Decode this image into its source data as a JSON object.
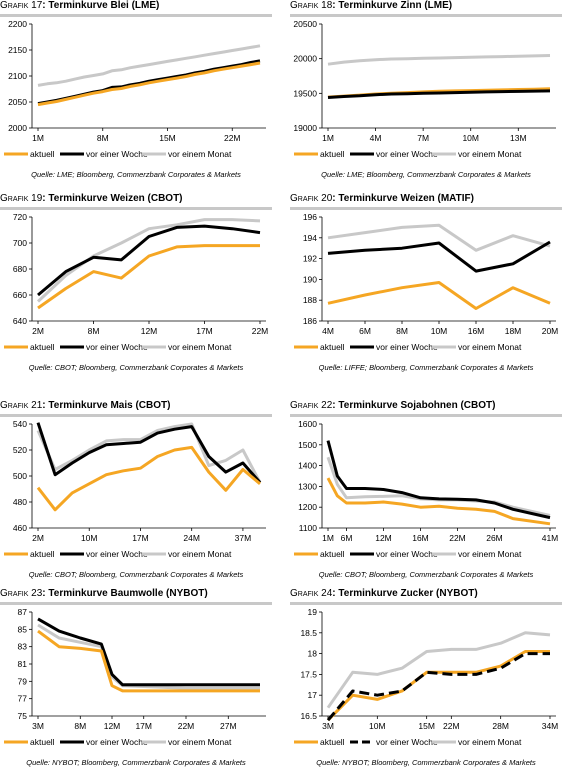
{
  "colors": {
    "aktuell": "#f5a623",
    "woche": "#000000",
    "monat": "#c8c8c8"
  },
  "legend": [
    "aktuell",
    "vor einer Woche",
    "vor einem Monat"
  ],
  "charts": [
    {
      "title_prefix": "Grafik 17",
      "title_text": ": Terminkurve Blei (LME)",
      "source": "Quelle: LME; Bloomberg, Commerzbank Corporates & Markets"
    },
    {
      "title_prefix": "Grafik 18",
      "title_text": ": Terminkurve Zinn (LME)",
      "source": "Quelle: LME; Bloomberg, Commerzbank Corporates & Markets"
    },
    {
      "title_prefix": "Grafik 19",
      "title_text": ": Terminkurve Weizen (CBOT)",
      "source": "Quelle: CBOT; Bloomberg, Commerzbank Corporates & Markets"
    },
    {
      "title_prefix": "Grafik 20",
      "title_text": ": Terminkurve Weizen (MATIF)",
      "source": "Quelle: LIFFE; Bloomberg, Commerzbank Corporates & Markets"
    },
    {
      "title_prefix": "Grafik 21",
      "title_text": ": Terminkurve Mais (CBOT)",
      "source": "Quelle: CBOT; Bloomberg, Commerzbank Corporates & Markets"
    },
    {
      "title_prefix": "Grafik 22",
      "title_text": ": Terminkurve Sojabohnen (CBOT)",
      "source": "Quelle: CBOT; Bloomberg, Commerzbank Corporates & Markets"
    },
    {
      "title_prefix": "Grafik 23",
      "title_text": ": Terminkurve Baumwolle (NYBOT)",
      "source": "Quelle: NYBOT; Bloomberg, Commerzbank Corporates & Markets"
    },
    {
      "title_prefix": "Grafik 24",
      "title_text": ": Terminkurve Zucker (NYBOT)",
      "source": "Quelle: NYBOT; Bloomberg, Commerzbank Corporates & Markets"
    }
  ],
  "chart_data": [
    {
      "type": "line",
      "xticks": [
        {
          "i": 0,
          "label": "1M"
        },
        {
          "i": 7,
          "label": "8M"
        },
        {
          "i": 14,
          "label": "15M"
        },
        {
          "i": 21,
          "label": "22M"
        }
      ],
      "ylim": [
        2000,
        2200
      ],
      "yticks": [
        2000,
        2050,
        2100,
        2150,
        2200
      ],
      "series": [
        {
          "name": "vor einem Monat",
          "key": "monat",
          "values": [
            2082,
            2085,
            2087,
            2090,
            2094,
            2098,
            2101,
            2104,
            2110,
            2112,
            2116,
            2119,
            2122,
            2125,
            2128,
            2131,
            2134,
            2137,
            2140,
            2143,
            2146,
            2149,
            2152,
            2155,
            2158
          ]
        },
        {
          "name": "vor einer Woche",
          "key": "woche",
          "values": [
            2047,
            2050,
            2053,
            2057,
            2061,
            2065,
            2069,
            2072,
            2078,
            2079,
            2083,
            2086,
            2090,
            2093,
            2096,
            2099,
            2102,
            2106,
            2109,
            2113,
            2116,
            2119,
            2122,
            2126,
            2129
          ]
        },
        {
          "name": "aktuell",
          "key": "aktuell",
          "values": [
            2045,
            2048,
            2051,
            2055,
            2059,
            2063,
            2067,
            2070,
            2074,
            2076,
            2080,
            2083,
            2087,
            2090,
            2093,
            2096,
            2099,
            2103,
            2106,
            2110,
            2113,
            2116,
            2119,
            2122,
            2125
          ]
        }
      ]
    },
    {
      "type": "line",
      "xticks": [
        {
          "i": 0,
          "label": "1M"
        },
        {
          "i": 3,
          "label": "4M"
        },
        {
          "i": 6,
          "label": "7M"
        },
        {
          "i": 9,
          "label": "10M"
        },
        {
          "i": 12,
          "label": "13M"
        }
      ],
      "ylim": [
        19000,
        20500
      ],
      "yticks": [
        19000,
        19500,
        20000,
        20500
      ],
      "series": [
        {
          "name": "vor einem Monat",
          "key": "monat",
          "values": [
            19920,
            19950,
            19970,
            19985,
            19995,
            20000,
            20005,
            20010,
            20015,
            20020,
            20025,
            20030,
            20035,
            20040,
            20045
          ]
        },
        {
          "name": "aktuell",
          "key": "aktuell",
          "values": [
            19445,
            19460,
            19475,
            19490,
            19500,
            19510,
            19520,
            19530,
            19535,
            19540,
            19545,
            19550,
            19555,
            19560,
            19565
          ]
        },
        {
          "name": "vor einer Woche",
          "key": "woche",
          "values": [
            19440,
            19455,
            19465,
            19480,
            19490,
            19495,
            19500,
            19505,
            19510,
            19515,
            19520,
            19525,
            19528,
            19532,
            19535
          ]
        }
      ]
    },
    {
      "type": "line",
      "xticks": [
        {
          "i": 0,
          "label": "2M"
        },
        {
          "i": 2,
          "label": "8M"
        },
        {
          "i": 4,
          "label": "12M"
        },
        {
          "i": 6,
          "label": "17M"
        },
        {
          "i": 8,
          "label": "22M"
        }
      ],
      "ylim": [
        640,
        720
      ],
      "yticks": [
        640,
        660,
        680,
        700,
        720
      ],
      "series": [
        {
          "name": "vor einem Monat",
          "key": "monat",
          "values": [
            655,
            675,
            690,
            700,
            711,
            714,
            718,
            718,
            717
          ]
        },
        {
          "name": "vor einer Woche",
          "key": "woche",
          "values": [
            660,
            678,
            689,
            687,
            705,
            712,
            713,
            711,
            708
          ]
        },
        {
          "name": "aktuell",
          "key": "aktuell",
          "values": [
            650,
            665,
            678,
            673,
            690,
            697,
            698,
            698,
            698
          ]
        }
      ],
      "x_count": 9,
      "x_positions": [
        0,
        1,
        2,
        3,
        4,
        5,
        6,
        7,
        8
      ]
    },
    {
      "type": "line",
      "xticks": [
        {
          "i": 0,
          "label": "4M"
        },
        {
          "i": 1,
          "label": "6M"
        },
        {
          "i": 2,
          "label": "8M"
        },
        {
          "i": 3,
          "label": "10M"
        },
        {
          "i": 4,
          "label": "16M"
        },
        {
          "i": 5,
          "label": "18M"
        },
        {
          "i": 6,
          "label": "20M"
        }
      ],
      "ylim": [
        186,
        196
      ],
      "yticks": [
        186,
        188,
        190,
        192,
        194,
        196
      ],
      "series": [
        {
          "name": "vor einem Monat",
          "key": "monat",
          "values": [
            194.0,
            194.5,
            195.0,
            195.2,
            192.8,
            194.2,
            193.2
          ]
        },
        {
          "name": "vor einer Woche",
          "key": "woche",
          "values": [
            192.5,
            192.8,
            193.0,
            193.5,
            190.8,
            191.5,
            193.6
          ]
        },
        {
          "name": "aktuell",
          "key": "aktuell",
          "values": [
            187.7,
            188.5,
            189.2,
            189.7,
            187.2,
            189.2,
            187.7
          ]
        }
      ]
    },
    {
      "type": "line",
      "xticks": [
        {
          "i": 0,
          "label": "2M"
        },
        {
          "i": 3,
          "label": "10M"
        },
        {
          "i": 6,
          "label": "17M"
        },
        {
          "i": 9,
          "label": "24M"
        },
        {
          "i": 12,
          "label": "37M"
        }
      ],
      "ylim": [
        460,
        540
      ],
      "yticks": [
        460,
        480,
        500,
        520,
        540
      ],
      "series": [
        {
          "name": "vor einem Monat",
          "key": "monat",
          "values": [
            535,
            505,
            512,
            520,
            527,
            528,
            528,
            535,
            538,
            540,
            508,
            512,
            520,
            495
          ]
        },
        {
          "name": "vor einer Woche",
          "key": "woche",
          "values": [
            541,
            501,
            510,
            518,
            524,
            525,
            526,
            533,
            536,
            538,
            515,
            503,
            510,
            495
          ]
        },
        {
          "name": "aktuell",
          "key": "aktuell",
          "values": [
            491,
            474,
            487,
            494,
            501,
            504,
            506,
            515,
            520,
            522,
            503,
            489,
            505,
            494
          ]
        }
      ]
    },
    {
      "type": "line",
      "xticks": [
        {
          "i": 0,
          "label": "1M"
        },
        {
          "i": 2,
          "label": "6M"
        },
        {
          "i": 4,
          "label": "12M"
        },
        {
          "i": 6,
          "label": "16M"
        },
        {
          "i": 8,
          "label": "22M"
        },
        {
          "i": 10,
          "label": "26M"
        },
        {
          "i": 12,
          "label": "41M"
        }
      ],
      "ylim": [
        1100,
        1600
      ],
      "yticks": [
        1100,
        1200,
        1300,
        1400,
        1500,
        1600
      ],
      "series": [
        {
          "name": "vor einem Monat",
          "key": "monat",
          "values": [
            1440,
            1310,
            1245,
            1250,
            1252,
            1255,
            1240,
            1235,
            1235,
            1230,
            1225,
            1200,
            1160
          ]
        },
        {
          "name": "vor einer Woche",
          "key": "woche",
          "values": [
            1520,
            1350,
            1290,
            1290,
            1285,
            1270,
            1245,
            1240,
            1238,
            1235,
            1220,
            1190,
            1150
          ]
        },
        {
          "name": "aktuell",
          "key": "aktuell",
          "values": [
            1340,
            1255,
            1220,
            1220,
            1225,
            1215,
            1200,
            1205,
            1195,
            1190,
            1180,
            1145,
            1120
          ]
        }
      ],
      "x_positions": [
        0,
        0.5,
        1,
        2,
        3,
        4,
        5,
        6,
        7,
        8,
        9,
        10,
        12
      ]
    },
    {
      "type": "line",
      "xticks": [
        {
          "i": 0,
          "label": "3M"
        },
        {
          "i": 2,
          "label": "8M"
        },
        {
          "i": 4,
          "label": "12M"
        },
        {
          "i": 6,
          "label": "17M"
        },
        {
          "i": 8,
          "label": "22M"
        },
        {
          "i": 10,
          "label": "27M"
        }
      ],
      "ylim": [
        75,
        87
      ],
      "yticks": [
        75,
        77,
        79,
        81,
        83,
        85,
        87
      ],
      "series": [
        {
          "name": "vor einem Monat",
          "key": "monat",
          "values": [
            85.5,
            84.0,
            83.5,
            83.0,
            79.5,
            78.5,
            78.4,
            78.3,
            78.2,
            78.2,
            78.2,
            78.2
          ]
        },
        {
          "name": "vor einer Woche",
          "key": "woche",
          "values": [
            86.2,
            84.8,
            84.0,
            83.3,
            79.8,
            78.6,
            78.6,
            78.6,
            78.6,
            78.6,
            78.6,
            78.6
          ]
        },
        {
          "name": "aktuell",
          "key": "aktuell",
          "values": [
            84.8,
            83.0,
            82.8,
            82.5,
            78.5,
            77.9,
            77.9,
            77.9,
            77.9,
            77.9,
            77.9,
            77.9
          ]
        }
      ],
      "x_positions": [
        0,
        1,
        2,
        3,
        3.5,
        4,
        5,
        6,
        7,
        8,
        9,
        10.5
      ]
    },
    {
      "type": "line",
      "xticks": [
        {
          "i": 0,
          "label": "3M"
        },
        {
          "i": 2,
          "label": "10M"
        },
        {
          "i": 4,
          "label": "15M"
        },
        {
          "i": 5,
          "label": "22M"
        },
        {
          "i": 7,
          "label": "28M"
        },
        {
          "i": 9,
          "label": "34M"
        }
      ],
      "ylim": [
        16.5,
        19.0
      ],
      "yticks": [
        16.5,
        17.0,
        17.5,
        18.0,
        18.5,
        19.0
      ],
      "series": [
        {
          "name": "vor einem Monat",
          "key": "monat",
          "values": [
            16.7,
            17.55,
            17.5,
            17.65,
            18.05,
            18.1,
            18.1,
            18.25,
            18.5,
            18.45
          ]
        },
        {
          "name": "aktuell",
          "key": "aktuell",
          "values": [
            16.4,
            17.0,
            16.9,
            17.1,
            17.55,
            17.55,
            17.55,
            17.7,
            18.05,
            18.05
          ]
        },
        {
          "name": "vor einer Woche",
          "key": "woche",
          "values": [
            16.4,
            17.1,
            17.0,
            17.1,
            17.55,
            17.5,
            17.5,
            17.65,
            18.0,
            18.0
          ],
          "dashed": true
        }
      ]
    }
  ]
}
